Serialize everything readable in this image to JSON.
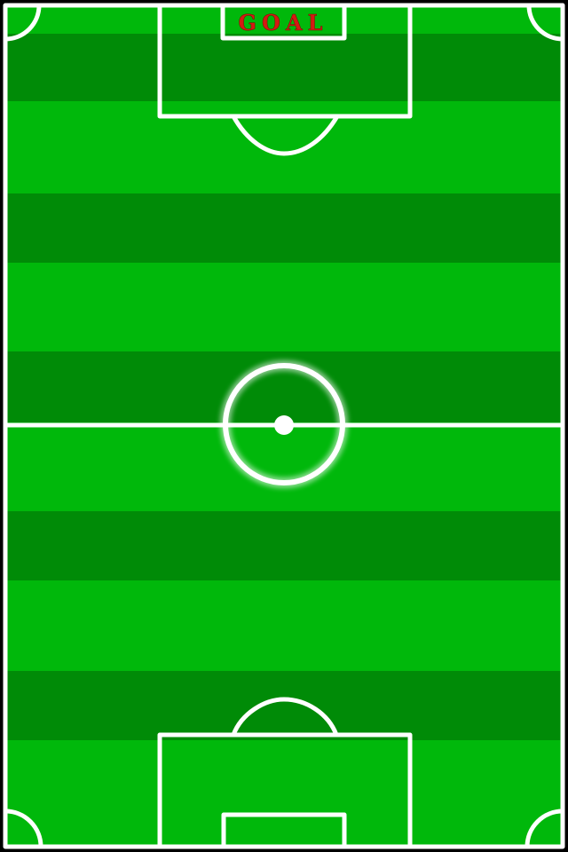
{
  "scene": {
    "goal_label": "GOAL"
  },
  "colors": {
    "grass_light": "#00b80b",
    "grass_dark": "#008b07",
    "line": "#ffffff",
    "goal_text": "#d51a12",
    "border": "#000000"
  }
}
